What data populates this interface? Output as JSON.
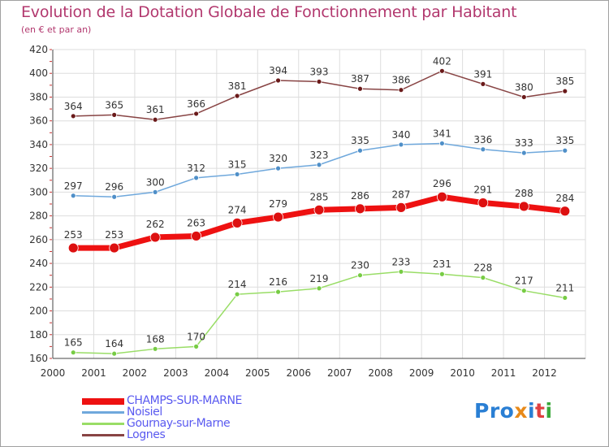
{
  "title": "Evolution de la Dotation Globale de Fonctionnement par Habitant",
  "subtitle": "(en € et par an)",
  "logo": {
    "text": "Proxiti",
    "parts": [
      "Pro",
      "x",
      "i",
      "t",
      "i"
    ]
  },
  "chart_data": {
    "type": "line",
    "title": "Evolution de la Dotation Globale de Fonctionnement par Habitant",
    "subtitle": "(en € et par an)",
    "xlabel": "",
    "ylabel": "",
    "x": [
      2000,
      2001,
      2002,
      2003,
      2004,
      2005,
      2006,
      2007,
      2008,
      2009,
      2010,
      2011,
      2012
    ],
    "ylim": [
      160,
      420
    ],
    "yticks": [
      160,
      180,
      200,
      220,
      240,
      260,
      280,
      300,
      320,
      340,
      360,
      380,
      400,
      420
    ],
    "grid": true,
    "legend_position": "bottom-left",
    "series": [
      {
        "name": "CHAMPS-SUR-MARNE",
        "color": "#ee1111",
        "marker": "#dd1010",
        "width": 7,
        "r": 6,
        "values": [
          253,
          253,
          262,
          263,
          274,
          279,
          285,
          286,
          287,
          296,
          291,
          288,
          284
        ]
      },
      {
        "name": "Noisiel",
        "color": "#6fa8dc",
        "marker": "#4f8fc8",
        "width": 1.5,
        "r": 3,
        "values": [
          297,
          296,
          300,
          312,
          315,
          320,
          323,
          335,
          340,
          341,
          336,
          333,
          335
        ]
      },
      {
        "name": "Gournay-sur-Marne",
        "color": "#99dd66",
        "marker": "#77cc44",
        "width": 1.5,
        "r": 3,
        "values": [
          165,
          164,
          168,
          170,
          214,
          216,
          219,
          230,
          233,
          231,
          228,
          217,
          211
        ]
      },
      {
        "name": "Lognes",
        "color": "#884444",
        "marker": "#6a1a1a",
        "width": 1.5,
        "r": 3,
        "values": [
          364,
          365,
          361,
          366,
          381,
          394,
          393,
          387,
          386,
          402,
          391,
          380,
          385
        ]
      }
    ]
  }
}
